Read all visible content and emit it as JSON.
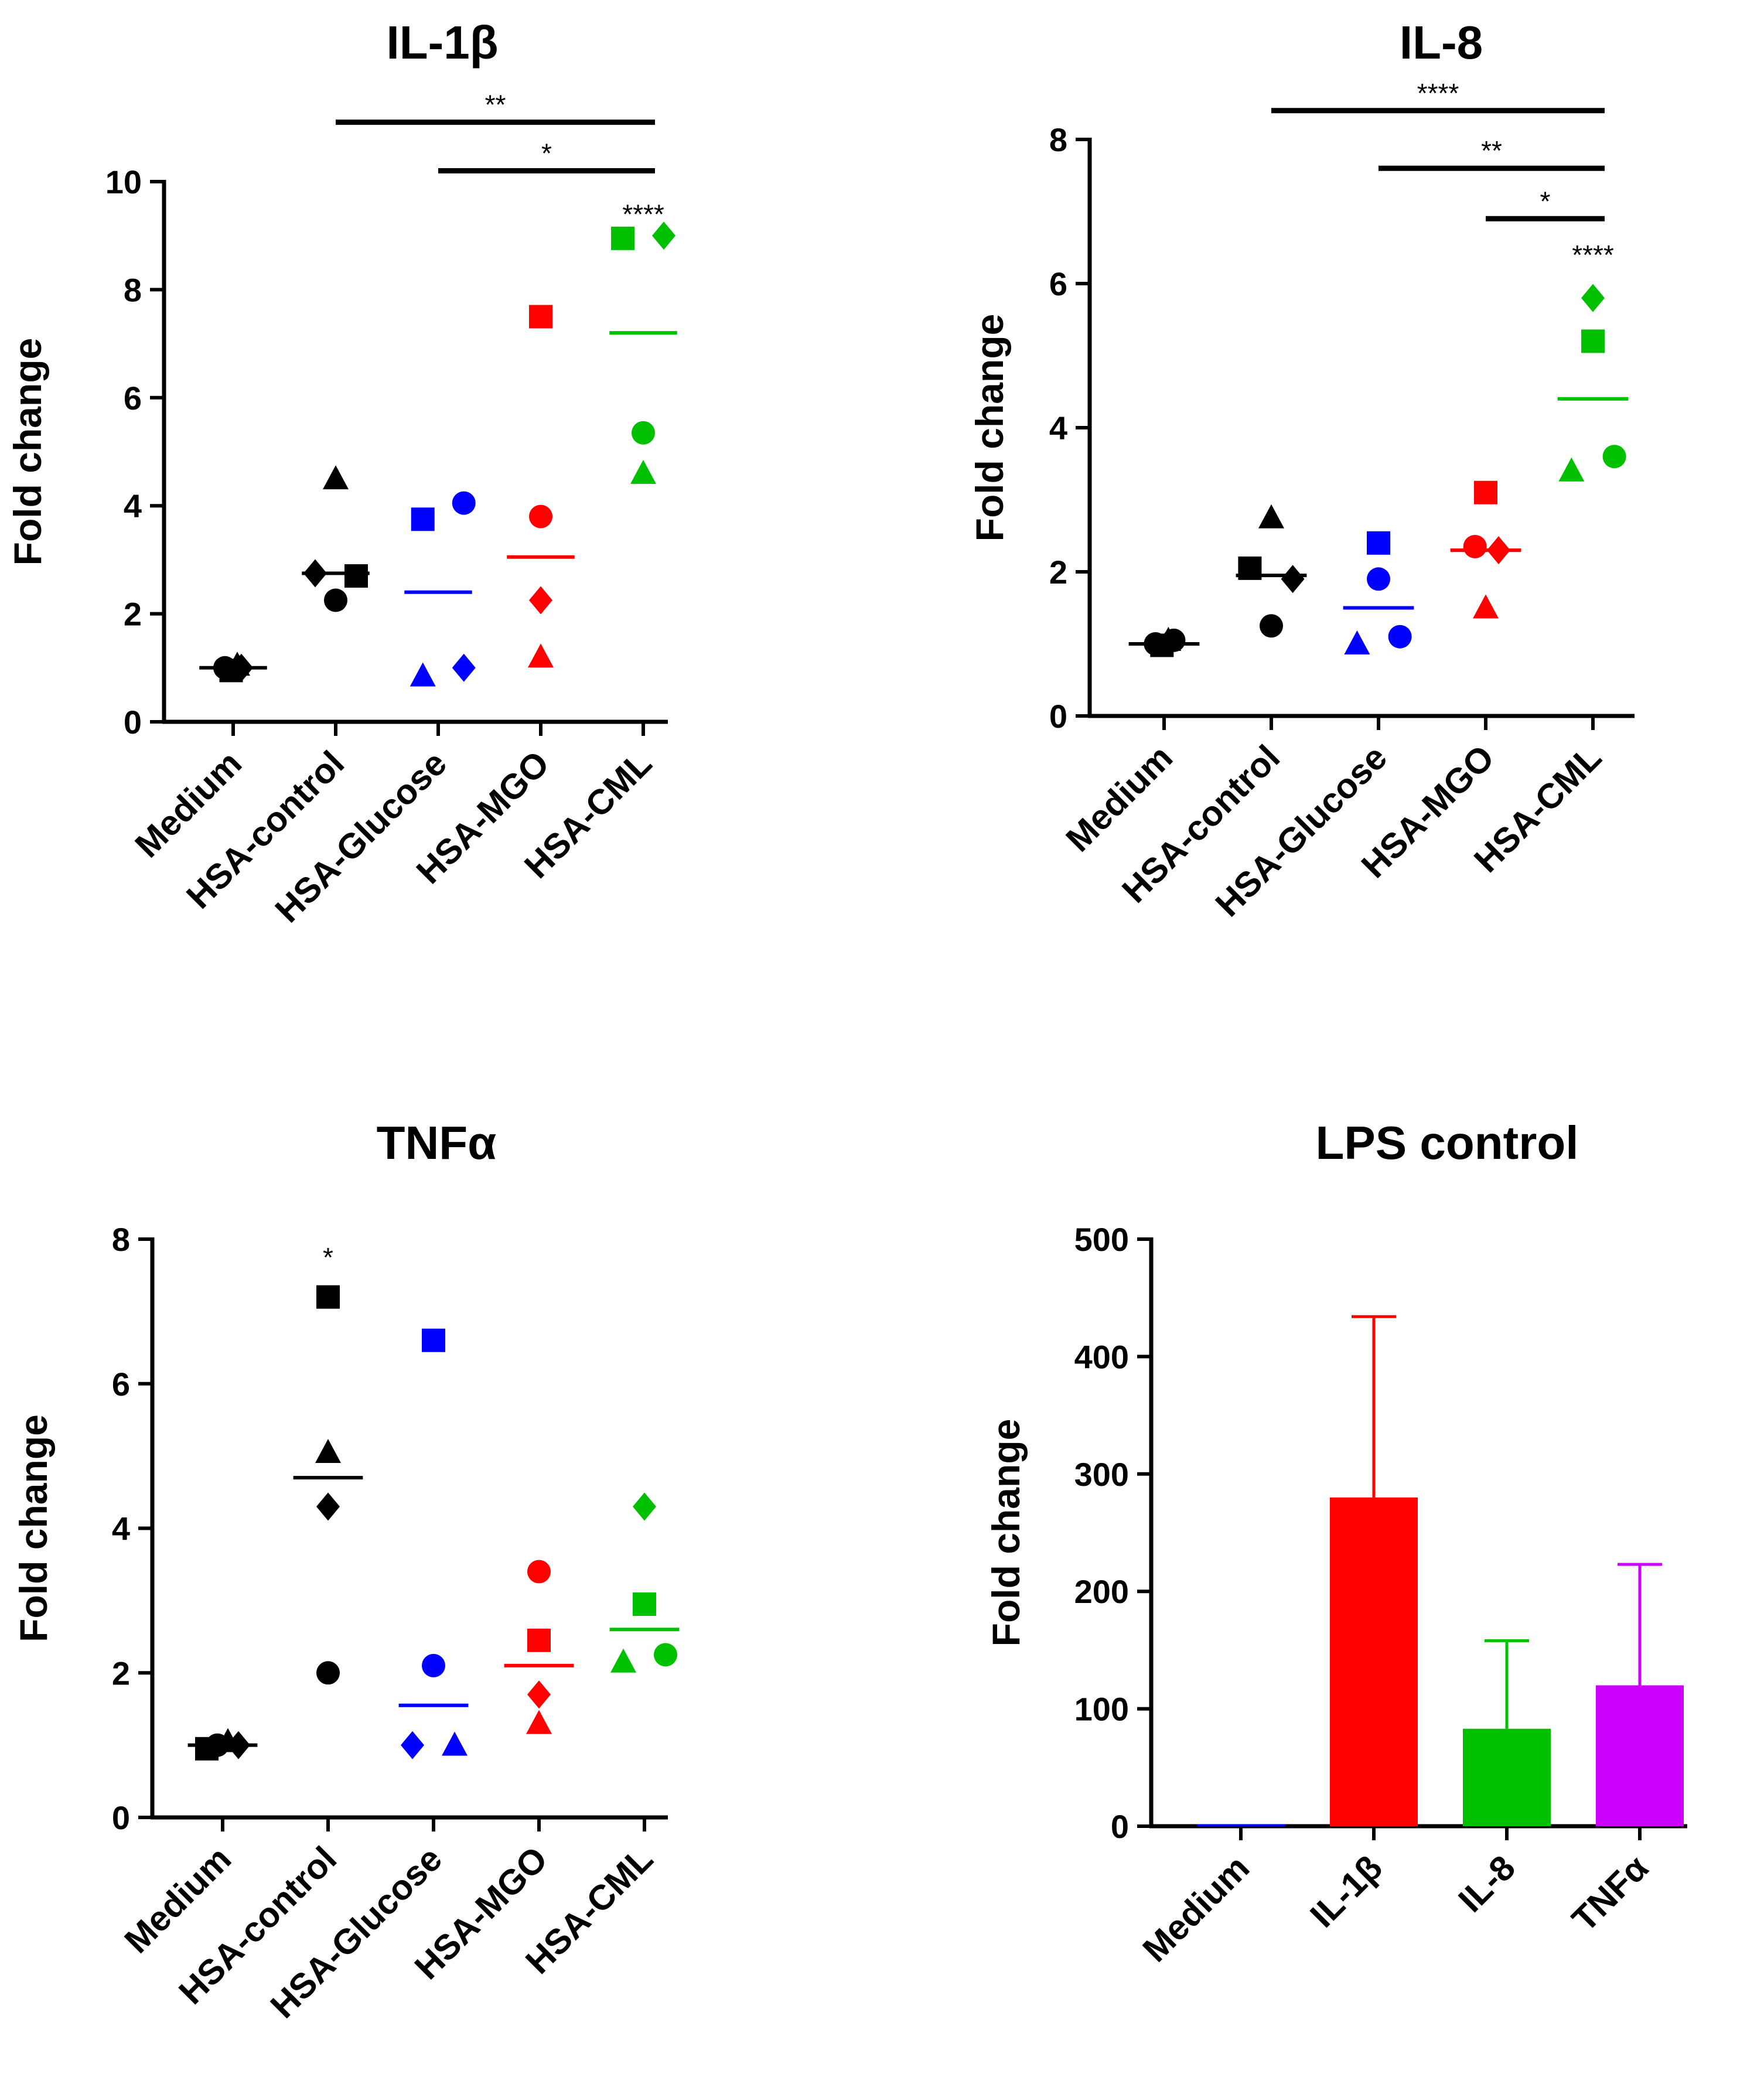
{
  "chart_data": [
    {
      "type": "scatter",
      "title": "IL-1β",
      "ylabel": "Fold change",
      "xlabel": "",
      "ylim": [
        0,
        10
      ],
      "yticks": [
        0,
        2,
        4,
        6,
        8,
        10
      ],
      "categories": [
        "Medium",
        "HSA-control",
        "HSA-Glucose",
        "HSA-MGO",
        "HSA-CML"
      ],
      "colors": [
        "#000000",
        "#000000",
        "#0000ff",
        "#ff0000",
        "#00c000"
      ],
      "points": [
        [
          {
            "marker": "circle",
            "x": -0.08,
            "y": 1.0
          },
          {
            "marker": "square",
            "x": -0.02,
            "y": 0.95
          },
          {
            "marker": "triangle",
            "x": 0.04,
            "y": 1.05
          },
          {
            "marker": "diamond",
            "x": 0.08,
            "y": 1.0
          }
        ],
        [
          {
            "marker": "triangle",
            "x": 0.0,
            "y": 4.5
          },
          {
            "marker": "diamond",
            "x": -0.2,
            "y": 2.75
          },
          {
            "marker": "square",
            "x": 0.2,
            "y": 2.7
          },
          {
            "marker": "circle",
            "x": 0.0,
            "y": 2.25
          }
        ],
        [
          {
            "marker": "square",
            "x": -0.15,
            "y": 3.75
          },
          {
            "marker": "circle",
            "x": 0.25,
            "y": 4.05
          },
          {
            "marker": "triangle",
            "x": -0.15,
            "y": 0.85
          },
          {
            "marker": "diamond",
            "x": 0.25,
            "y": 1.0
          }
        ],
        [
          {
            "marker": "square",
            "x": 0.0,
            "y": 7.5
          },
          {
            "marker": "circle",
            "x": 0.0,
            "y": 3.8
          },
          {
            "marker": "diamond",
            "x": 0.0,
            "y": 2.25
          },
          {
            "marker": "triangle",
            "x": 0.0,
            "y": 1.2
          }
        ],
        [
          {
            "marker": "square",
            "x": -0.2,
            "y": 8.95
          },
          {
            "marker": "diamond",
            "x": 0.2,
            "y": 9.0
          },
          {
            "marker": "circle",
            "x": 0.0,
            "y": 5.35
          },
          {
            "marker": "triangle",
            "x": 0.0,
            "y": 4.6
          }
        ]
      ],
      "means": [
        1.0,
        2.75,
        2.4,
        3.05,
        7.2
      ],
      "significance_bars": [
        {
          "from": 1,
          "to": 4,
          "y": 11.1,
          "label": "**"
        },
        {
          "from": 2,
          "to": 4,
          "y": 10.2,
          "label": "*"
        }
      ],
      "annotations": [
        {
          "category": 4,
          "y": 9.4,
          "label": "****"
        }
      ]
    },
    {
      "type": "scatter",
      "title": "IL-8",
      "ylabel": "Fold change",
      "xlabel": "",
      "ylim": [
        0,
        8
      ],
      "yticks": [
        0,
        2,
        4,
        6,
        8
      ],
      "categories": [
        "Medium",
        "HSA-control",
        "HSA-Glucose",
        "HSA-MGO",
        "HSA-CML"
      ],
      "colors": [
        "#000000",
        "#000000",
        "#0000ff",
        "#ff0000",
        "#00c000"
      ],
      "points": [
        [
          {
            "marker": "circle",
            "x": -0.08,
            "y": 1.0
          },
          {
            "marker": "square",
            "x": -0.02,
            "y": 0.98
          },
          {
            "marker": "triangle",
            "x": 0.04,
            "y": 1.05
          },
          {
            "marker": "circle",
            "x": 0.09,
            "y": 1.05
          }
        ],
        [
          {
            "marker": "triangle",
            "x": 0.0,
            "y": 2.75
          },
          {
            "marker": "square",
            "x": -0.2,
            "y": 2.05
          },
          {
            "marker": "diamond",
            "x": 0.2,
            "y": 1.9
          },
          {
            "marker": "circle",
            "x": 0.0,
            "y": 1.25
          }
        ],
        [
          {
            "marker": "square",
            "x": 0.0,
            "y": 2.4
          },
          {
            "marker": "circle",
            "x": 0.0,
            "y": 1.9
          },
          {
            "marker": "triangle",
            "x": -0.2,
            "y": 1.0
          },
          {
            "marker": "circle",
            "x": 0.2,
            "y": 1.1
          }
        ],
        [
          {
            "marker": "square",
            "x": 0.0,
            "y": 3.1
          },
          {
            "marker": "circle",
            "x": -0.1,
            "y": 2.35
          },
          {
            "marker": "diamond",
            "x": 0.12,
            "y": 2.3
          },
          {
            "marker": "triangle",
            "x": 0.0,
            "y": 1.5
          }
        ],
        [
          {
            "marker": "diamond",
            "x": 0.0,
            "y": 5.8
          },
          {
            "marker": "square",
            "x": 0.0,
            "y": 5.2
          },
          {
            "marker": "triangle",
            "x": -0.2,
            "y": 3.4
          },
          {
            "marker": "circle",
            "x": 0.2,
            "y": 3.6
          }
        ]
      ],
      "means": [
        1.0,
        1.95,
        1.5,
        2.3,
        4.4
      ],
      "significance_bars": [
        {
          "from": 1,
          "to": 4,
          "y": 8.4,
          "label": "****"
        },
        {
          "from": 2,
          "to": 4,
          "y": 7.6,
          "label": "**"
        },
        {
          "from": 3,
          "to": 4,
          "y": 6.9,
          "label": "*"
        }
      ],
      "annotations": [
        {
          "category": 4,
          "y": 6.4,
          "label": "****"
        }
      ]
    },
    {
      "type": "scatter",
      "title": "TNFα",
      "ylabel": "Fold change",
      "xlabel": "",
      "ylim": [
        0,
        8
      ],
      "yticks": [
        0,
        2,
        4,
        6,
        8
      ],
      "categories": [
        "Medium",
        "HSA-control",
        "HSA-Glucose",
        "HSA-MGO",
        "HSA-CML"
      ],
      "colors": [
        "#000000",
        "#000000",
        "#0000ff",
        "#ff0000",
        "#00c000"
      ],
      "points": [
        [
          {
            "marker": "square",
            "x": -0.15,
            "y": 0.95
          },
          {
            "marker": "circle",
            "x": -0.05,
            "y": 1.0
          },
          {
            "marker": "triangle",
            "x": 0.05,
            "y": 1.05
          },
          {
            "marker": "diamond",
            "x": 0.15,
            "y": 1.0
          }
        ],
        [
          {
            "marker": "square",
            "x": 0.0,
            "y": 7.2
          },
          {
            "marker": "triangle",
            "x": 0.0,
            "y": 5.05
          },
          {
            "marker": "diamond",
            "x": 0.0,
            "y": 4.3
          },
          {
            "marker": "circle",
            "x": 0.0,
            "y": 2.0
          }
        ],
        [
          {
            "marker": "square",
            "x": 0.0,
            "y": 6.6
          },
          {
            "marker": "circle",
            "x": 0.0,
            "y": 2.1
          },
          {
            "marker": "diamond",
            "x": -0.2,
            "y": 1.0
          },
          {
            "marker": "triangle",
            "x": 0.2,
            "y": 1.0
          }
        ],
        [
          {
            "marker": "circle",
            "x": 0.0,
            "y": 3.4
          },
          {
            "marker": "square",
            "x": 0.0,
            "y": 2.45
          },
          {
            "marker": "diamond",
            "x": 0.0,
            "y": 1.7
          },
          {
            "marker": "triangle",
            "x": 0.0,
            "y": 1.3
          }
        ],
        [
          {
            "marker": "diamond",
            "x": 0.0,
            "y": 4.3
          },
          {
            "marker": "square",
            "x": 0.0,
            "y": 2.95
          },
          {
            "marker": "triangle",
            "x": -0.2,
            "y": 2.15
          },
          {
            "marker": "circle",
            "x": 0.2,
            "y": 2.25
          }
        ]
      ],
      "means": [
        1.0,
        4.7,
        1.55,
        2.1,
        2.6
      ],
      "significance_bars": [],
      "annotations": [
        {
          "category": 1,
          "y": 7.75,
          "label": "*"
        }
      ]
    },
    {
      "type": "bar",
      "title": "LPS control",
      "ylabel": "Fold change",
      "xlabel": "",
      "ylim": [
        0,
        500
      ],
      "yticks": [
        0,
        100,
        200,
        300,
        400,
        500
      ],
      "categories": [
        "Medium",
        "IL-1β",
        "IL-8",
        "TNFα"
      ],
      "values": [
        1,
        280,
        83,
        120
      ],
      "errors": [
        0,
        154,
        75,
        103
      ],
      "colors": [
        "#0000ff",
        "#ff0000",
        "#00c000",
        "#cc00ff"
      ]
    }
  ]
}
